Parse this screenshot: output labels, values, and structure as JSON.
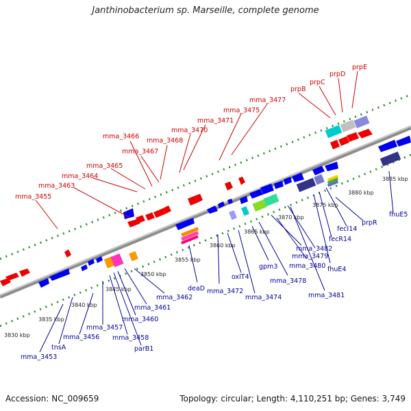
{
  "title": "Janthinobacterium sp. Marseille, complete genome",
  "footer": {
    "accession": "Accession: NC_009659",
    "summary": "Topology: circular; Length: 4,110,251 bp; Genes: 3,749"
  },
  "colors": {
    "forward_label": "#cc0000",
    "reverse_label": "#000099",
    "tick": "#2e8b2e",
    "backbone": "#909090"
  },
  "ruler_labels": [
    {
      "id": "kbp-3830",
      "text": "3830 kbp"
    },
    {
      "id": "kbp-3835",
      "text": "3835 kbp"
    },
    {
      "id": "kbp-3840",
      "text": "3840 kbp"
    },
    {
      "id": "kbp-3845",
      "text": "3845 kbp"
    },
    {
      "id": "kbp-3850",
      "text": "3850 kbp"
    },
    {
      "id": "kbp-3855",
      "text": "3855 kbp"
    },
    {
      "id": "kbp-3860",
      "text": "3860 kbp"
    },
    {
      "id": "kbp-3865",
      "text": "3865 kbp"
    },
    {
      "id": "kbp-3870",
      "text": "3870 kbp"
    },
    {
      "id": "kbp-3875",
      "text": "3875 kbp"
    },
    {
      "id": "kbp-3880",
      "text": "3880 kbp"
    },
    {
      "id": "kbp-3885",
      "text": "3885 kbp"
    }
  ],
  "forward_genes": [
    {
      "id": "mma_3455",
      "text": "mma_3455"
    },
    {
      "id": "mma_3463",
      "text": "mma_3463"
    },
    {
      "id": "mma_3464",
      "text": "mma_3464"
    },
    {
      "id": "mma_3465",
      "text": "mma_3465"
    },
    {
      "id": "mma_3466",
      "text": "mma_3466"
    },
    {
      "id": "mma_3467",
      "text": "mma_3467"
    },
    {
      "id": "mma_3468",
      "text": "mma_3468"
    },
    {
      "id": "mma_3470",
      "text": "mma_3470"
    },
    {
      "id": "mma_3471",
      "text": "mma_3471"
    },
    {
      "id": "mma_3475",
      "text": "mma_3475"
    },
    {
      "id": "mma_3477",
      "text": "mma_3477"
    },
    {
      "id": "prpB",
      "text": "prpB"
    },
    {
      "id": "prpC",
      "text": "prpC"
    },
    {
      "id": "prpD",
      "text": "prpD"
    },
    {
      "id": "prpE",
      "text": "prpE"
    }
  ],
  "reverse_genes": [
    {
      "id": "mma_3453",
      "text": "mma_3453"
    },
    {
      "id": "tnsA",
      "text": "tnsA"
    },
    {
      "id": "mma_3456",
      "text": "mma_3456"
    },
    {
      "id": "mma_3457",
      "text": "mma_3457"
    },
    {
      "id": "mma_3458",
      "text": "mma_3458"
    },
    {
      "id": "parB1",
      "text": "parB1"
    },
    {
      "id": "mma_3460",
      "text": "mma_3460"
    },
    {
      "id": "mma_3461",
      "text": "mma_3461"
    },
    {
      "id": "mma_3462",
      "text": "mma_3462"
    },
    {
      "id": "deaD",
      "text": "deaD"
    },
    {
      "id": "mma_3472",
      "text": "mma_3472"
    },
    {
      "id": "oxlT4",
      "text": "oxlT4"
    },
    {
      "id": "mma_3474",
      "text": "mma_3474"
    },
    {
      "id": "gpm3",
      "text": "gpm3"
    },
    {
      "id": "mma_3478",
      "text": "mma_3478"
    },
    {
      "id": "mma_3479",
      "text": "mma_3479"
    },
    {
      "id": "mma_3480",
      "text": "mma_3480"
    },
    {
      "id": "mma_3482",
      "text": "mma_3482"
    },
    {
      "id": "mma_3481",
      "text": "mma_3481"
    },
    {
      "id": "fhuE4",
      "text": "fhuE4"
    },
    {
      "id": "fecR14",
      "text": "fecR14"
    },
    {
      "id": "fecI14",
      "text": "fecI14"
    },
    {
      "id": "prpR",
      "text": "prpR"
    },
    {
      "id": "fhuE5",
      "text": "fhuE5"
    }
  ]
}
